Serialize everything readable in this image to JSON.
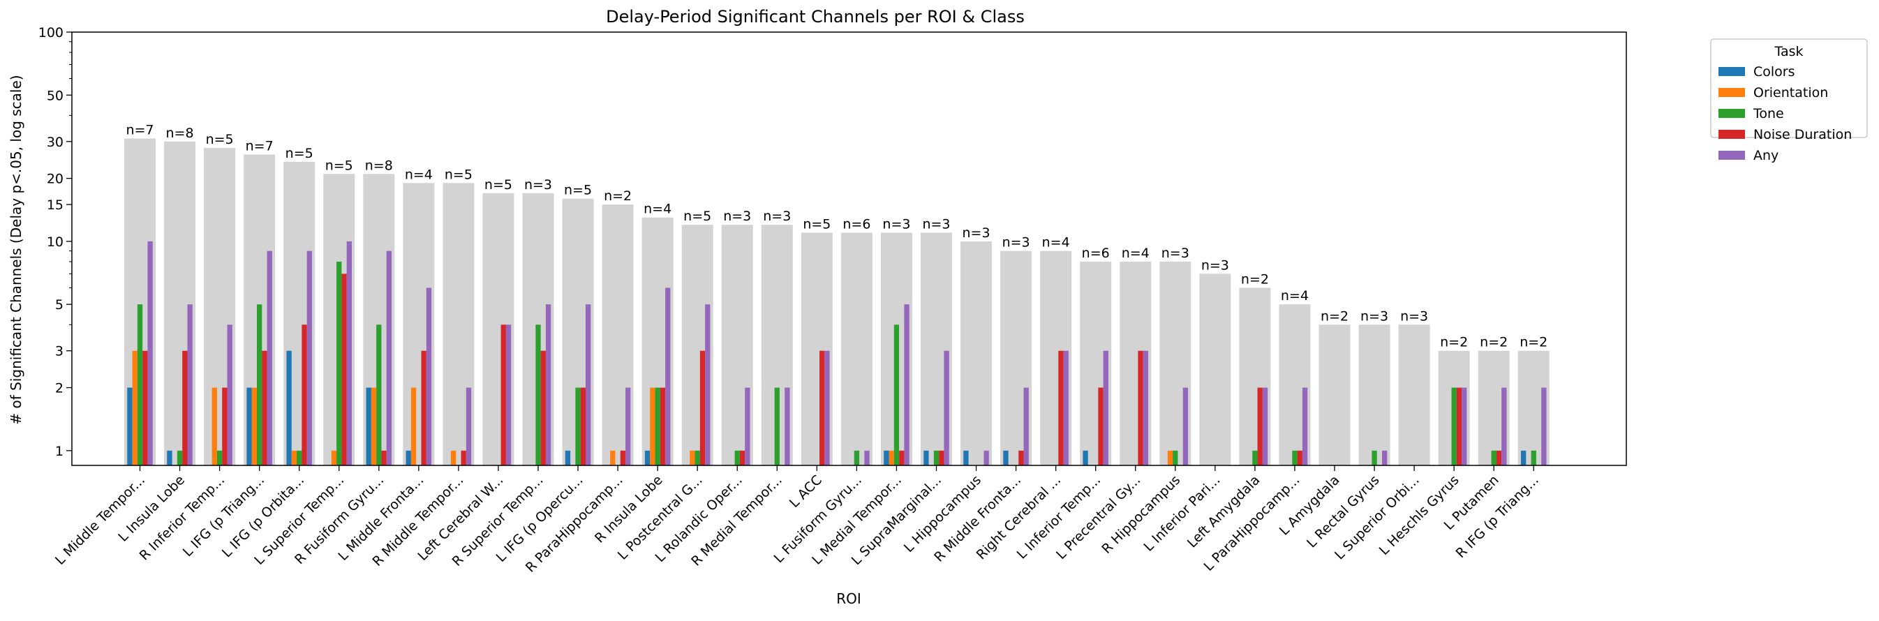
{
  "chart_data": {
    "type": "bar",
    "title": "Delay-Period Significant Channels per ROI & Class",
    "xlabel": "ROI",
    "ylabel": "# of Significant Channels (Delay p<.05, log scale)",
    "yscale": "log",
    "ylim": [
      0.85,
      100
    ],
    "yticks": [
      1,
      2,
      3,
      5,
      10,
      15,
      20,
      30,
      50,
      100
    ],
    "legend": {
      "title": "Task",
      "placement": "outside-top-right"
    },
    "grid": false,
    "categories": [
      "L Middle Tempor...",
      "L Insula Lobe",
      "R Inferior Temp...",
      "L IFG (p Triang...",
      "L IFG (p Orbita...",
      "L Superior Temp...",
      "R Fusiform Gyru...",
      "L Middle Fronta...",
      "R Middle Tempor...",
      "Left Cerebral W...",
      "R Superior Temp...",
      "L IFG (p Opercu...",
      "R ParaHippocamp...",
      "R Insula Lobe",
      "L Postcentral G...",
      "L Rolandic Oper...",
      "R Medial Tempor...",
      "L ACC",
      "L Fusiform Gyru...",
      "L Medial Tempor...",
      "L SupraMarginal...",
      "L Hippocampus",
      "R Middle Fronta...",
      "Right Cerebral ...",
      "L Inferior Temp...",
      "L Precentral Gy...",
      "R Hippocampus",
      "L Inferior Pari...",
      "Left Amygdala",
      "L ParaHippocamp...",
      "L Amygdala",
      "L Rectal Gyrus",
      "L Superior Orbi...",
      "L Heschls Gyrus",
      "L Putamen",
      "R IFG (p Triang..."
    ],
    "totals": [
      31,
      30,
      28,
      26,
      24,
      21,
      21,
      19,
      19,
      17,
      17,
      16,
      15,
      13,
      12,
      12,
      12,
      11,
      11,
      11,
      11,
      10,
      9,
      9,
      8,
      8,
      8,
      7,
      6,
      5,
      4,
      4,
      4,
      3,
      3,
      3
    ],
    "annotations": [
      "n=7",
      "n=8",
      "n=5",
      "n=7",
      "n=5",
      "n=5",
      "n=8",
      "n=4",
      "n=5",
      "n=5",
      "n=3",
      "n=5",
      "n=2",
      "n=4",
      "n=5",
      "n=3",
      "n=3",
      "n=5",
      "n=6",
      "n=3",
      "n=3",
      "n=3",
      "n=3",
      "n=4",
      "n=6",
      "n=4",
      "n=3",
      "n=3",
      "n=2",
      "n=4",
      "n=2",
      "n=3",
      "n=3",
      "n=2",
      "n=2",
      "n=2"
    ],
    "totals_color": "#d3d3d3",
    "series": [
      {
        "name": "Colors",
        "color": "#1f77b4",
        "values": [
          2,
          1,
          0,
          2,
          3,
          0,
          2,
          1,
          0,
          0,
          0,
          1,
          0,
          1,
          0,
          0,
          0,
          0,
          0,
          1,
          1,
          1,
          1,
          0,
          1,
          0,
          0,
          0,
          0,
          0,
          0,
          0,
          0,
          0,
          0,
          1
        ]
      },
      {
        "name": "Orientation",
        "color": "#ff7f0e",
        "values": [
          3,
          0,
          2,
          2,
          1,
          1,
          2,
          2,
          1,
          0,
          0,
          0,
          1,
          2,
          1,
          0,
          0,
          0,
          0,
          1,
          0,
          0,
          0,
          0,
          0,
          0,
          1,
          0,
          0,
          0,
          0,
          0,
          0,
          0,
          0,
          0
        ]
      },
      {
        "name": "Tone",
        "color": "#2ca02c",
        "values": [
          5,
          1,
          1,
          5,
          1,
          8,
          4,
          0,
          0,
          0,
          4,
          2,
          0,
          2,
          1,
          1,
          2,
          0,
          1,
          4,
          1,
          0,
          0,
          0,
          0,
          0,
          1,
          0,
          1,
          1,
          0,
          1,
          0,
          2,
          1,
          1
        ]
      },
      {
        "name": "Noise Duration",
        "color": "#d62728",
        "values": [
          3,
          3,
          2,
          3,
          4,
          7,
          1,
          3,
          1,
          4,
          3,
          2,
          1,
          2,
          3,
          1,
          0,
          3,
          0,
          1,
          1,
          0,
          1,
          3,
          2,
          3,
          0,
          0,
          2,
          1,
          0,
          0,
          0,
          2,
          1,
          0
        ]
      },
      {
        "name": "Any",
        "color": "#9467bd",
        "values": [
          10,
          5,
          4,
          9,
          9,
          10,
          9,
          6,
          2,
          4,
          5,
          5,
          2,
          6,
          5,
          2,
          2,
          3,
          1,
          5,
          3,
          1,
          2,
          3,
          3,
          3,
          2,
          0,
          2,
          2,
          0,
          1,
          0,
          2,
          2,
          2
        ]
      }
    ]
  }
}
